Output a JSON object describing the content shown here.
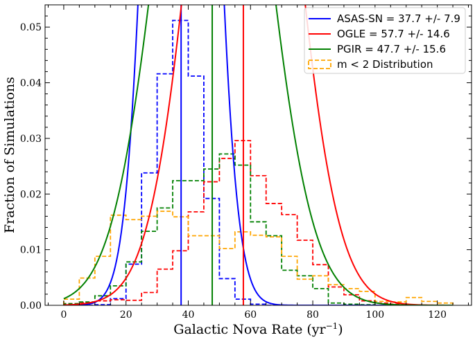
{
  "chart_data": {
    "type": "histogram-line",
    "xlabel": "Galactic Nova Rate (yr",
    "xlabel_sup": "−1",
    "xlabel_close": ")",
    "ylabel": "Fraction of Simulations",
    "xlim": [
      -6,
      131
    ],
    "ylim": [
      0,
      0.054
    ],
    "xticks": [
      0,
      20,
      40,
      60,
      80,
      100,
      120
    ],
    "xtick_labels": [
      "0",
      "20",
      "40",
      "60",
      "80",
      "100",
      "120"
    ],
    "yticks": [
      0.0,
      0.01,
      0.02,
      0.03,
      0.04,
      0.05
    ],
    "ytick_labels": [
      "0.00",
      "0.01",
      "0.02",
      "0.03",
      "0.04",
      "0.05"
    ],
    "legend_position": "top-right",
    "series": [
      {
        "name": "ASAS-SN",
        "label": "ASAS-SN = 37.7 +/- 7.9",
        "color": "#0000ff",
        "mean": 37.7,
        "sigma": 7.9,
        "hist_edges": [
          0,
          5,
          10,
          15,
          20,
          25,
          30,
          35,
          40,
          45,
          50,
          55,
          60,
          65,
          70
        ],
        "hist_values": [
          0.0,
          0.0,
          0.0001,
          0.0012,
          0.0074,
          0.0238,
          0.0416,
          0.0512,
          0.0412,
          0.0192,
          0.0048,
          0.0011,
          0.0002,
          0.0
        ]
      },
      {
        "name": "OGLE",
        "label": "OGLE = 57.7 +/- 14.6",
        "color": "#ff0000",
        "mean": 57.7,
        "sigma": 14.6,
        "hist_edges": [
          0,
          5,
          10,
          15,
          20,
          25,
          30,
          35,
          40,
          45,
          50,
          55,
          60,
          65,
          70,
          75,
          80,
          85,
          90,
          95,
          100,
          105,
          110
        ],
        "hist_values": [
          0.0003,
          0.0005,
          0.0008,
          0.001,
          0.0009,
          0.0023,
          0.0065,
          0.0098,
          0.0168,
          0.0222,
          0.0264,
          0.0296,
          0.0233,
          0.0183,
          0.0163,
          0.0117,
          0.0073,
          0.0033,
          0.0019,
          0.0008,
          0.0004,
          0.0002
        ]
      },
      {
        "name": "PGIR",
        "label": "PGIR = 47.7 +/- 15.6",
        "color": "#008000",
        "mean": 47.7,
        "sigma": 15.6,
        "hist_edges": [
          0,
          5,
          10,
          15,
          20,
          25,
          30,
          35,
          40,
          45,
          50,
          55,
          60,
          65,
          70,
          75,
          80,
          85,
          90,
          95,
          100,
          105,
          110
        ],
        "hist_values": [
          0.0003,
          0.0006,
          0.0017,
          0.0035,
          0.0078,
          0.0133,
          0.0175,
          0.0224,
          0.0224,
          0.0245,
          0.0272,
          0.0252,
          0.015,
          0.0125,
          0.0063,
          0.0053,
          0.003,
          0.0004,
          0.0002,
          0.0001,
          0.0,
          0.0
        ]
      },
      {
        "name": "m < 2 Distribution",
        "label": "m < 2 Distribution",
        "color": "#ffa500",
        "hist_edges": [
          0,
          5,
          10,
          15,
          20,
          25,
          30,
          35,
          40,
          45,
          50,
          55,
          60,
          65,
          70,
          75,
          80,
          85,
          90,
          95,
          100,
          105,
          110,
          115,
          120,
          125
        ],
        "hist_values": [
          0.0011,
          0.0049,
          0.0088,
          0.0162,
          0.0154,
          0.016,
          0.0169,
          0.0159,
          0.0125,
          0.0125,
          0.0102,
          0.0132,
          0.0126,
          0.0123,
          0.0088,
          0.0047,
          0.0053,
          0.0037,
          0.003,
          0.0025,
          0.0007,
          0.0006,
          0.0014,
          0.0007,
          0.0004
        ]
      }
    ]
  }
}
